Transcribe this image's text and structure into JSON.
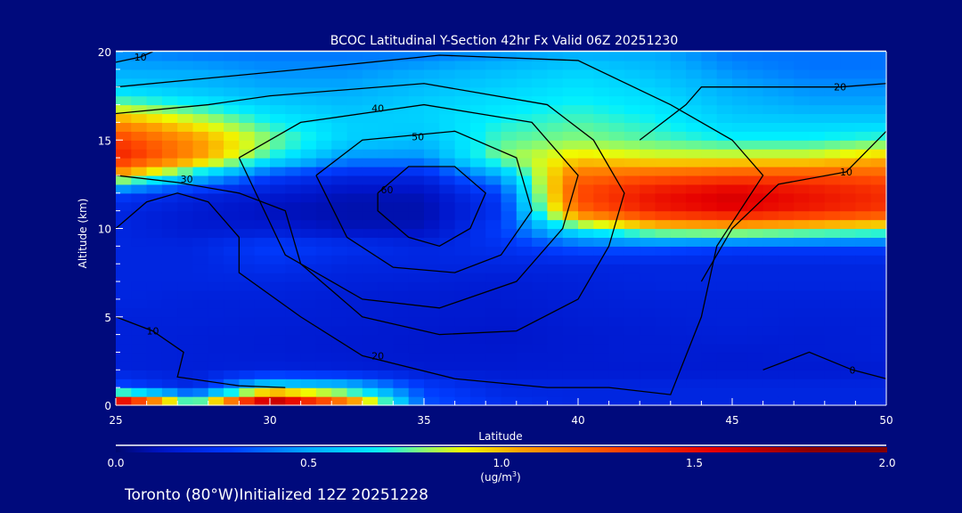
{
  "chart_data": {
    "type": "heatmap",
    "title": "BCOC Latitudinal Y-Section 42hr  Fx Valid 06Z 20251230",
    "xlabel": "Latitude",
    "ylabel": "Altitude (km)",
    "xlim": [
      25,
      50
    ],
    "ylim": [
      0,
      20
    ],
    "x_ticks": [
      "25",
      "30",
      "35",
      "40",
      "45",
      "50"
    ],
    "x_tick_values": [
      25,
      30,
      35,
      40,
      45,
      50
    ],
    "y_ticks": [
      "0",
      "5",
      "10",
      "15",
      "20"
    ],
    "y_tick_values": [
      0,
      5,
      10,
      15,
      20
    ],
    "grid_lat": [
      25,
      27.5,
      30,
      32.5,
      35,
      37.5,
      40,
      42.5,
      45,
      47.5,
      50
    ],
    "grid_alt": [
      0,
      1,
      2,
      3,
      4,
      5,
      6,
      7,
      8,
      9,
      10,
      11,
      12,
      13,
      14,
      15,
      16,
      17,
      18,
      19,
      20
    ],
    "values": [
      [
        2.0,
        0.8,
        2.0,
        1.3,
        0.35,
        0.25,
        0.2,
        0.2,
        0.2,
        0.2,
        0.2
      ],
      [
        0.35,
        0.2,
        0.7,
        0.6,
        0.3,
        0.2,
        0.2,
        0.2,
        0.2,
        0.2,
        0.2
      ],
      [
        0.18,
        0.17,
        0.18,
        0.17,
        0.15,
        0.15,
        0.15,
        0.15,
        0.15,
        0.15,
        0.15
      ],
      [
        0.18,
        0.17,
        0.16,
        0.15,
        0.14,
        0.14,
        0.15,
        0.16,
        0.15,
        0.16,
        0.17
      ],
      [
        0.18,
        0.17,
        0.16,
        0.15,
        0.14,
        0.13,
        0.15,
        0.16,
        0.17,
        0.16,
        0.17
      ],
      [
        0.18,
        0.18,
        0.17,
        0.16,
        0.15,
        0.14,
        0.16,
        0.17,
        0.18,
        0.17,
        0.17
      ],
      [
        0.2,
        0.18,
        0.18,
        0.16,
        0.15,
        0.15,
        0.17,
        0.18,
        0.18,
        0.18,
        0.18
      ],
      [
        0.2,
        0.2,
        0.2,
        0.18,
        0.17,
        0.16,
        0.18,
        0.2,
        0.2,
        0.2,
        0.2
      ],
      [
        0.2,
        0.2,
        0.25,
        0.2,
        0.2,
        0.2,
        0.2,
        0.2,
        0.2,
        0.2,
        0.2
      ],
      [
        0.2,
        0.2,
        0.3,
        0.25,
        0.2,
        0.25,
        0.35,
        0.35,
        0.3,
        0.3,
        0.3
      ],
      [
        0.2,
        0.15,
        0.15,
        0.1,
        0.1,
        0.3,
        0.7,
        0.9,
        0.95,
        0.9,
        0.85
      ],
      [
        0.2,
        0.15,
        0.1,
        0.08,
        0.08,
        0.25,
        1.2,
        1.45,
        1.55,
        1.45,
        1.35
      ],
      [
        0.3,
        0.2,
        0.15,
        0.1,
        0.1,
        0.3,
        1.3,
        1.5,
        1.6,
        1.5,
        1.4
      ],
      [
        1.0,
        0.6,
        0.3,
        0.2,
        0.2,
        0.5,
        1.2,
        1.25,
        1.3,
        1.3,
        1.25
      ],
      [
        1.45,
        1.1,
        0.7,
        0.45,
        0.45,
        0.8,
        0.95,
        0.9,
        0.9,
        0.9,
        1.0
      ],
      [
        1.35,
        1.1,
        0.8,
        0.6,
        0.55,
        0.75,
        0.8,
        0.75,
        0.7,
        0.7,
        0.75
      ],
      [
        1.1,
        0.9,
        0.7,
        0.6,
        0.6,
        0.7,
        0.75,
        0.7,
        0.6,
        0.6,
        0.6
      ],
      [
        0.8,
        0.7,
        0.6,
        0.55,
        0.6,
        0.65,
        0.7,
        0.65,
        0.55,
        0.5,
        0.5
      ],
      [
        0.6,
        0.55,
        0.5,
        0.5,
        0.55,
        0.6,
        0.65,
        0.6,
        0.5,
        0.45,
        0.45
      ],
      [
        0.5,
        0.5,
        0.45,
        0.45,
        0.5,
        0.55,
        0.6,
        0.55,
        0.45,
        0.4,
        0.4
      ],
      [
        0.45,
        0.4,
        0.4,
        0.4,
        0.4,
        0.45,
        0.5,
        0.5,
        0.4,
        0.4,
        0.4
      ]
    ],
    "contours": [
      {
        "label": "60",
        "label_at": [
          33.8,
          12.2
        ],
        "points": [
          [
            33.5,
            12
          ],
          [
            34.5,
            13.5
          ],
          [
            36,
            13.5
          ],
          [
            37,
            12
          ],
          [
            36.5,
            10
          ],
          [
            35.5,
            9
          ],
          [
            34.5,
            9.5
          ],
          [
            33.5,
            11
          ],
          [
            33.5,
            12
          ]
        ]
      },
      {
        "label": "50",
        "label_at": [
          34.8,
          15.2
        ],
        "points": [
          [
            31.5,
            13
          ],
          [
            33,
            15
          ],
          [
            36,
            15.5
          ],
          [
            38,
            14
          ],
          [
            38.5,
            11
          ],
          [
            37.5,
            8.5
          ],
          [
            36,
            7.5
          ],
          [
            34,
            7.8
          ],
          [
            32.5,
            9.5
          ],
          [
            31.5,
            13
          ]
        ]
      },
      {
        "label": "40",
        "label_at": [
          33.5,
          16.8
        ],
        "points": [
          [
            29,
            14
          ],
          [
            31,
            16
          ],
          [
            35,
            17
          ],
          [
            38.5,
            16
          ],
          [
            40,
            13
          ],
          [
            39.5,
            10
          ],
          [
            38,
            7
          ],
          [
            35.5,
            5.5
          ],
          [
            33,
            6
          ],
          [
            30.5,
            8.5
          ],
          [
            29,
            14
          ]
        ]
      },
      {
        "label": "30",
        "label_at": [
          27.3,
          12.8
        ],
        "points": [
          [
            25,
            13
          ],
          [
            27,
            12.6
          ],
          [
            29,
            12
          ],
          [
            30.5,
            11
          ],
          [
            31,
            8
          ],
          [
            33,
            5
          ],
          [
            35.5,
            4
          ],
          [
            38,
            4.2
          ],
          [
            40,
            6
          ],
          [
            41,
            9
          ],
          [
            41.5,
            12
          ],
          [
            40.5,
            15
          ],
          [
            39,
            17
          ],
          [
            35,
            18.2
          ],
          [
            30,
            17.5
          ],
          [
            28,
            17
          ],
          [
            25,
            16.5
          ]
        ]
      },
      {
        "label": "20",
        "label_at": [
          33.5,
          2.8
        ],
        "points": [
          [
            25,
            10
          ],
          [
            26,
            11.5
          ],
          [
            27,
            12
          ],
          [
            28,
            11.5
          ],
          [
            29,
            9.5
          ],
          [
            29,
            7.5
          ],
          [
            31,
            5
          ],
          [
            33,
            2.8
          ],
          [
            36,
            1.5
          ],
          [
            39,
            1
          ],
          [
            41,
            1
          ],
          [
            43,
            0.6
          ],
          [
            44,
            5
          ],
          [
            44.5,
            9
          ],
          [
            46,
            13
          ],
          [
            45,
            15
          ],
          [
            43,
            17
          ],
          [
            40,
            19.5
          ],
          [
            35.5,
            19.8
          ],
          [
            31,
            19
          ],
          [
            25,
            18
          ]
        ]
      },
      {
        "label": "10",
        "label_at": [
          26.2,
          4.2
        ],
        "points": [
          [
            25,
            5
          ],
          [
            26.2,
            4.2
          ],
          [
            27.2,
            3
          ],
          [
            27,
            1.6
          ],
          [
            29,
            1.1
          ],
          [
            30.5,
            1
          ]
        ]
      },
      {
        "label": "10",
        "label_at": [
          25.8,
          19.7
        ],
        "points": [
          [
            25,
            19.4
          ],
          [
            25.8,
            19.7
          ],
          [
            26.2,
            20
          ]
        ]
      },
      {
        "label": "20",
        "label_at": [
          48.5,
          18
        ],
        "points": [
          [
            42,
            15
          ],
          [
            43.5,
            17
          ],
          [
            44,
            18
          ],
          [
            46,
            18
          ],
          [
            48.5,
            18
          ],
          [
            50,
            18.2
          ]
        ]
      },
      {
        "label": "10",
        "label_at": [
          48.7,
          13.2
        ],
        "points": [
          [
            44,
            7
          ],
          [
            45,
            10
          ],
          [
            46.5,
            12.5
          ],
          [
            48.7,
            13.2
          ],
          [
            50,
            15.5
          ]
        ]
      },
      {
        "label": "0",
        "label_at": [
          48.9,
          2
        ],
        "points": [
          [
            46,
            2
          ],
          [
            47.5,
            3
          ],
          [
            48.9,
            2
          ],
          [
            50,
            1.5
          ]
        ]
      }
    ],
    "colorbar": {
      "ticks": [
        "0.0",
        "0.5",
        "1.0",
        "1.5",
        "2.0"
      ],
      "tick_values": [
        0,
        0.5,
        1,
        1.5,
        2
      ],
      "range": [
        0,
        2
      ],
      "units_prefix": "(ug/m",
      "units_sup": "3",
      "units_suffix": ")"
    }
  },
  "footer": {
    "text": "Toronto (80°W)Initialized 12Z 20251228"
  },
  "colors": {
    "background": "#000a7c",
    "text": "#ffffff",
    "contour": "#000000"
  }
}
